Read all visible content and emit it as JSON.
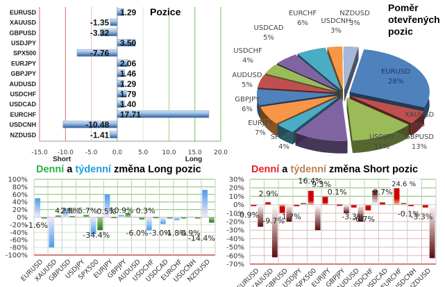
{
  "chart_data": [
    {
      "id": "positions",
      "type": "bar",
      "orientation": "horizontal",
      "title": "Pozice",
      "categories": [
        "EURUSD",
        "XAUUSD",
        "GBPUSD",
        "USDJPY",
        "SPX500",
        "EURJPY",
        "GBPJPY",
        "AUDUSD",
        "USDCHF",
        "USDCAD",
        "EURCHF",
        "USDCNH",
        "NZDUSD"
      ],
      "values": [
        1.29,
        -1.35,
        -3.32,
        3.5,
        -7.76,
        2.06,
        1.46,
        1.29,
        1.79,
        1.4,
        17.71,
        -10.48,
        -1.41
      ],
      "value_labels": [
        "1.29",
        "-1.35",
        "-3.32",
        "3.50",
        "-7.76",
        "2.06",
        "1.46",
        "1.29",
        "1.79",
        "1.40",
        "17.71",
        "-10.48",
        "-1.41"
      ],
      "xlim": [
        -15,
        20
      ],
      "xticks": [
        "-15.0",
        "-10.0",
        "-5.0",
        "0.0",
        "5.0",
        "10.0",
        "15.0",
        "20.0"
      ],
      "xlabel_left": "Short",
      "xlabel_right": "Long",
      "grid": true,
      "colors": {
        "bar": "#4f81bd",
        "neg_grid": "#d99694",
        "pos_grid": "#9bbb59"
      }
    },
    {
      "id": "open-positions-ratio",
      "type": "pie",
      "title": "Poměr otevřených pozic",
      "title_lines": [
        "Poměr",
        "otevřených",
        "pozic"
      ],
      "slices": [
        {
          "label": "EURUSD",
          "value": 28,
          "text": "28%",
          "color": "#4f81bd"
        },
        {
          "label": "XAUUSD",
          "value": 5,
          "text": "5%",
          "color": "#c0504d"
        },
        {
          "label": "GBPUSD",
          "value": 13,
          "text": "13%",
          "color": "#9bbb59"
        },
        {
          "label": "USDJPY",
          "value": 11,
          "text": "11%",
          "color": "#8064a2"
        },
        {
          "label": "SPX500",
          "value": 4,
          "text": "4%",
          "color": "#4bacc6"
        },
        {
          "label": "EURJPY",
          "value": 7,
          "text": "7%",
          "color": "#f79646"
        },
        {
          "label": "GBPJPY",
          "value": 6,
          "text": "6%",
          "color": "#4f81bd"
        },
        {
          "label": "AUDUSD",
          "value": 5,
          "text": "5%",
          "color": "#c0504d"
        },
        {
          "label": "USDCHF",
          "value": 4,
          "text": "4%",
          "color": "#9bbb59"
        },
        {
          "label": "USDCAD",
          "value": 5,
          "text": "5%",
          "color": "#8064a2"
        },
        {
          "label": "EURCHF",
          "value": 6,
          "text": "6%",
          "color": "#4bacc6"
        },
        {
          "label": "USDCNH",
          "value": 3,
          "text": "3%",
          "color": "#f79646"
        },
        {
          "label": "NZDUSD",
          "value": 3,
          "text": "3%",
          "color": "#a5b8da"
        }
      ]
    },
    {
      "id": "long-change",
      "type": "bar",
      "title_parts": [
        {
          "text": "Denní",
          "color": "#2ab04a"
        },
        {
          "text": " a ",
          "color": "#000000"
        },
        {
          "text": "týdenní",
          "color": "#1e9be0"
        },
        {
          "text": " změna Long pozic",
          "color": "#000000"
        }
      ],
      "categories": [
        "EURUSD",
        "XAUUSD",
        "GBPUSD",
        "USDJPY",
        "SPX500",
        "EURJPY",
        "GBPJPY",
        "AUDUSD",
        "USDCHF",
        "USDCAD",
        "EURCHF",
        "USDCNH",
        "NZDUSD"
      ],
      "series": [
        {
          "name": "Denní",
          "color": "#2e8b2e",
          "values": [
            -1.6,
            4.3,
            2.8,
            5.7,
            -34.4,
            0.5,
            10.9,
            -6.0,
            0.3,
            -3.0,
            -1.8,
            -0.9,
            -14.4
          ]
        },
        {
          "name": "Týdenní",
          "color": "#4a9cf0",
          "values": [
            50,
            -80,
            18,
            0,
            -45,
            60,
            6,
            0,
            -35,
            -18,
            -8,
            0,
            72
          ]
        }
      ],
      "data_labels": [
        "-1.6%",
        "4.3%",
        "2.8%",
        "5.7%",
        "-34.4%",
        "0.5%",
        "10.9%",
        "-6.0%",
        "0.3%",
        "-3.0%",
        "-1.8%",
        "-0.9%",
        "-14.4%"
      ],
      "yticks": [
        "100%",
        "80%",
        "60%",
        "40%",
        "20%",
        "0%",
        "-20%",
        "-40%",
        "-60%",
        "-80%",
        "-100%"
      ],
      "ylim": [
        -100,
        100
      ],
      "grid": true
    },
    {
      "id": "short-change",
      "type": "bar",
      "title_parts": [
        {
          "text": "Denní",
          "color": "#e8202a"
        },
        {
          "text": " a ",
          "color": "#000000"
        },
        {
          "text": "týdenní",
          "color": "#c08050"
        },
        {
          "text": " změna Short pozic",
          "color": "#000000"
        }
      ],
      "categories": [
        "EURUSD",
        "XAUUSD",
        "GBPUSD",
        "USDJPY",
        "SPX500",
        "EURJPY",
        "GBPJPY",
        "AUDUSD",
        "USDCHF",
        "USDCAD",
        "EURCHF",
        "USDCNH",
        "NZDUSD"
      ],
      "series": [
        {
          "name": "Denní",
          "color": "#d00000",
          "values": [
            -0.9,
            2.9,
            -9.7,
            -1.7,
            16.4,
            9.3,
            0.1,
            -3.3,
            -6.7,
            2.7,
            24.6,
            -0.1,
            -3.3
          ]
        },
        {
          "name": "Týdenní",
          "color": "#6b1010",
          "values": [
            -26,
            -62,
            -20,
            2,
            -30,
            0,
            -10,
            -20,
            17,
            0,
            2,
            0,
            -63
          ]
        }
      ],
      "data_labels": [
        "-0.9%",
        "2.9%",
        "-9.7%",
        "-1.7%",
        "16.4%",
        "9.3%",
        "0.1%",
        "-3.3%",
        "-6.7%",
        "2.7%",
        "24.6 %",
        "-0.1%",
        "-3.3%"
      ],
      "yticks": [
        "30%",
        "20%",
        "10%",
        "0%",
        "-10%",
        "-20%",
        "-30%",
        "-40%",
        "-50%",
        "-60%",
        "-70%"
      ],
      "ylim": [
        -70,
        30
      ],
      "grid": true
    }
  ]
}
